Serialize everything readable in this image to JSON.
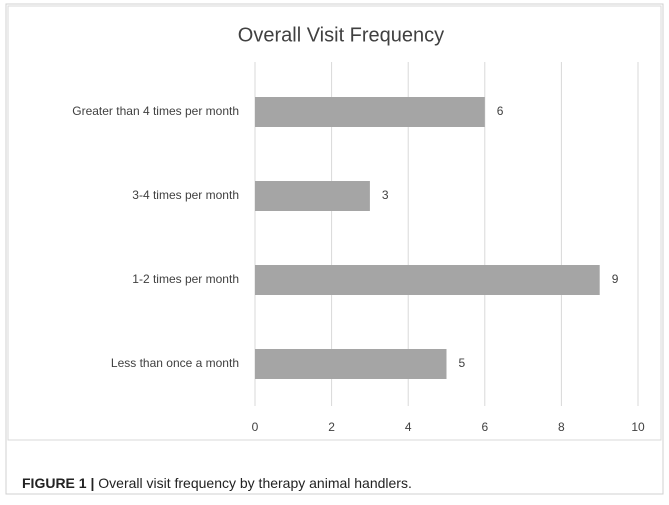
{
  "chart_data": {
    "type": "barh",
    "title": "Overall Visit Frequency",
    "categories": [
      "Greater than 4 times per month",
      "3-4 times per month",
      "1-2 times per month",
      "Less than once a month"
    ],
    "values": [
      6,
      3,
      9,
      5
    ],
    "color": "#a5a5a5",
    "xlim": [
      0,
      10
    ],
    "xticks": [
      0,
      2,
      4,
      6,
      8,
      10
    ],
    "grid": true,
    "caption_label": "FIGURE 1 |",
    "caption": "Overall visit frequency by therapy animal handlers."
  }
}
